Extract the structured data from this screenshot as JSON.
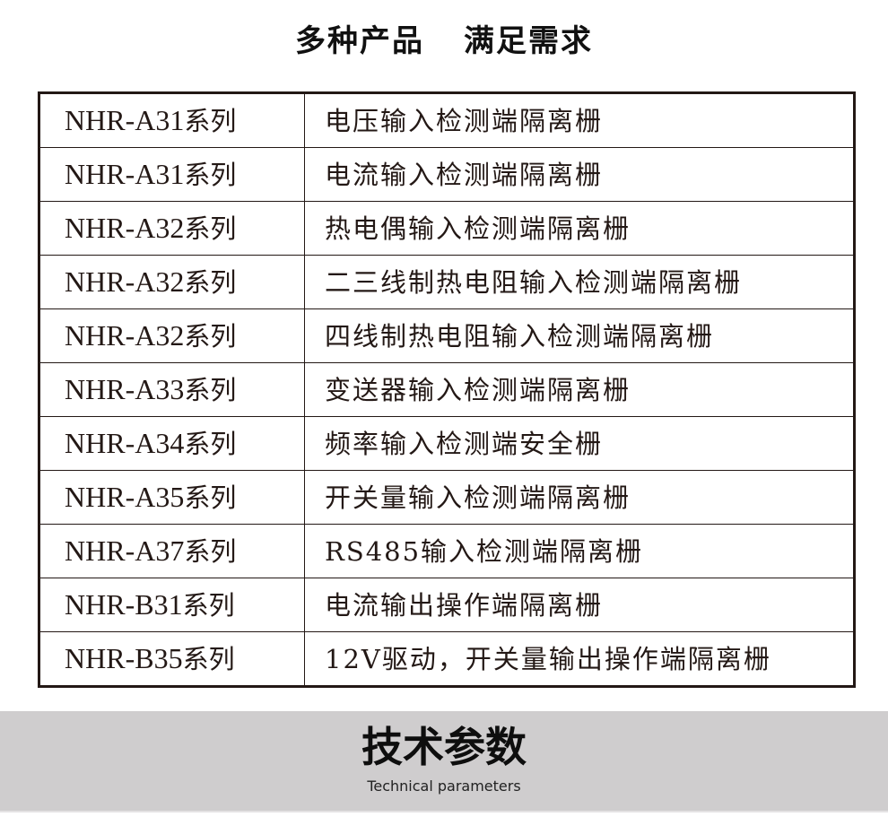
{
  "title": {
    "part1": "多种产品",
    "part2": "满足需求"
  },
  "rows": [
    {
      "model": "NHR-A31",
      "suffix": "系列",
      "desc": "电压输入检测端隔离栅"
    },
    {
      "model": "NHR-A31",
      "suffix": "系列",
      "desc": "电流输入检测端隔离栅"
    },
    {
      "model": "NHR-A32",
      "suffix": "系列",
      "desc": "热电偶输入检测端隔离栅"
    },
    {
      "model": "NHR-A32",
      "suffix": "系列",
      "desc": "二三线制热电阻输入检测端隔离栅"
    },
    {
      "model": "NHR-A32",
      "suffix": "系列",
      "desc": "四线制热电阻输入检测端隔离栅"
    },
    {
      "model": "NHR-A33",
      "suffix": "系列",
      "desc": "变送器输入检测端隔离栅"
    },
    {
      "model": "NHR-A34",
      "suffix": "系列",
      "desc": "频率输入检测端安全栅"
    },
    {
      "model": "NHR-A35",
      "suffix": "系列",
      "desc": "开关量输入检测端隔离栅"
    },
    {
      "model": "NHR-A37",
      "suffix": "系列",
      "desc": "RS485输入检测端隔离栅"
    },
    {
      "model": "NHR-B31",
      "suffix": "系列",
      "desc": "电流输出操作端隔离栅"
    },
    {
      "model": "NHR-B35",
      "suffix": "系列",
      "desc": "12V驱动，开关量输出操作端隔离栅"
    }
  ],
  "banner": {
    "heading": "技术参数",
    "subheading": "Technical parameters",
    "background": "#cfcdce"
  }
}
